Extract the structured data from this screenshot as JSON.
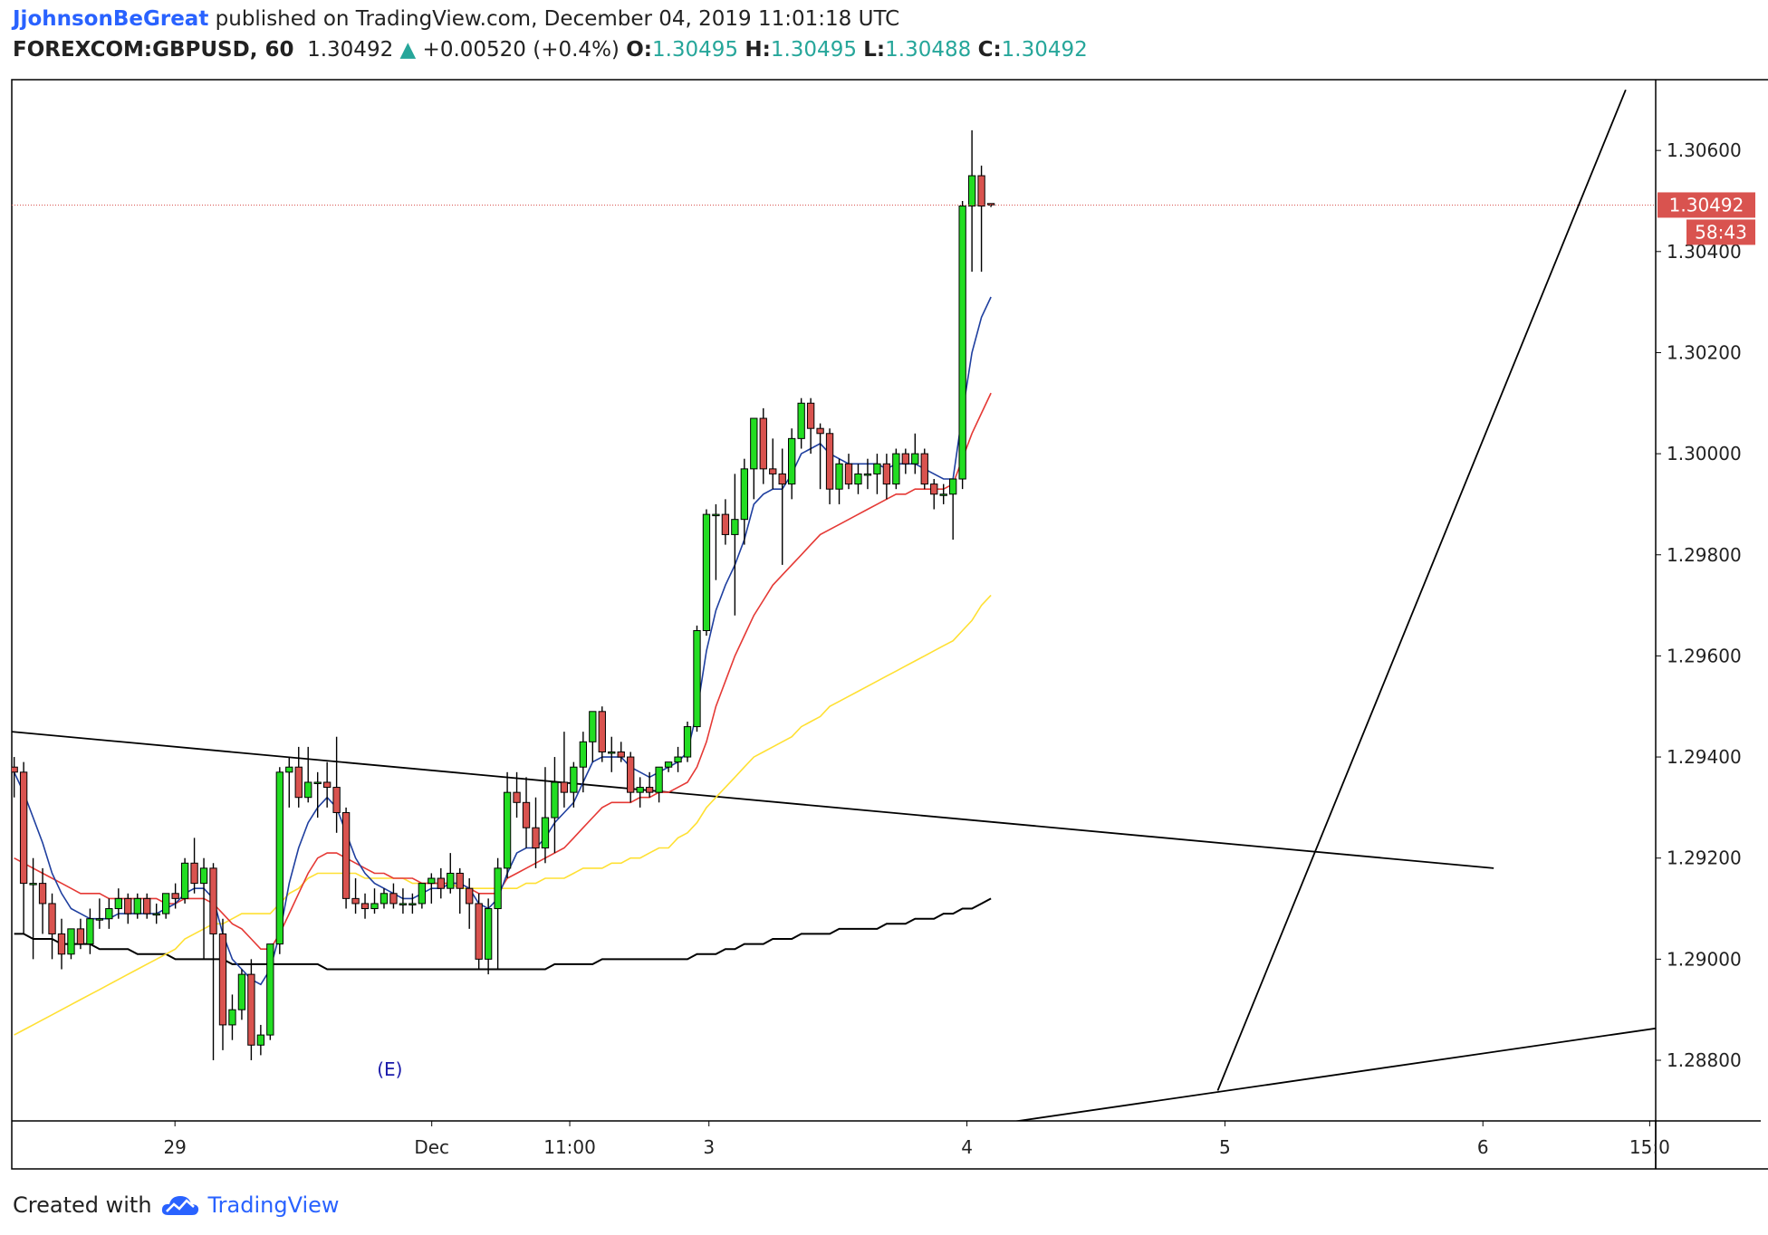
{
  "header": {
    "author": "JjohnsonBeGreat",
    "published_text": " published on TradingView.com, December 04, 2019 11:01:18 UTC",
    "symbol": "FOREXCOM:GBPUSD, 60",
    "last": "1.30492",
    "up_arrow": "▲",
    "change": "+0.00520 (+0.4%)",
    "o_label": "O:",
    "o_value": "1.30495",
    "h_label": "H:",
    "h_value": "1.30495",
    "l_label": "L:",
    "l_value": "1.30488",
    "c_label": "C:",
    "c_value": "1.30492"
  },
  "footer": {
    "created_with": "Created with",
    "brand": "TradingView"
  },
  "colors": {
    "up": "#22dd22",
    "down": "#d9534f",
    "ema_fast": "#1f3f9f",
    "ema_mid": "#e53935",
    "ema_slow": "#ffe033",
    "ma_long": "#000000",
    "price_line": "#d9534f"
  },
  "chart_data": {
    "type": "candlestick",
    "y_range": [
      1.2868,
      1.3074
    ],
    "y_ticks": [
      "1.28800",
      "1.29000",
      "1.29200",
      "1.29400",
      "1.29600",
      "1.29800",
      "1.30000",
      "1.30200",
      "1.30400",
      "1.30600"
    ],
    "x_ticks": [
      {
        "label": "29",
        "x": 48.6
      },
      {
        "label": "Dec",
        "x": 70.0
      },
      {
        "label": "11:00",
        "x": 81.5
      },
      {
        "label": "3",
        "x": 93.1
      },
      {
        "label": "4",
        "x": 114.6
      },
      {
        "label": "5",
        "x": 136.1
      },
      {
        "label": "6",
        "x": 157.6
      },
      {
        "label": "15:0",
        "x": 171.5
      }
    ],
    "x_range": [
      35,
      172
    ],
    "current_price": "1.30492",
    "countdown": "58:43",
    "event_marker": "(E)",
    "event_x": 66.5,
    "candles": [
      {
        "o": 1.2938,
        "h": 1.294,
        "l": 1.2932,
        "c": 1.2937
      },
      {
        "o": 1.2937,
        "h": 1.2939,
        "l": 1.2905,
        "c": 1.2915
      },
      {
        "o": 1.2915,
        "h": 1.292,
        "l": 1.29,
        "c": 1.2915
      },
      {
        "o": 1.2915,
        "h": 1.2918,
        "l": 1.2905,
        "c": 1.2911
      },
      {
        "o": 1.2911,
        "h": 1.2913,
        "l": 1.29,
        "c": 1.2905
      },
      {
        "o": 1.2905,
        "h": 1.2908,
        "l": 1.2898,
        "c": 1.2901
      },
      {
        "o": 1.2901,
        "h": 1.2906,
        "l": 1.29,
        "c": 1.2906
      },
      {
        "o": 1.2906,
        "h": 1.2908,
        "l": 1.2902,
        "c": 1.2903
      },
      {
        "o": 1.2903,
        "h": 1.291,
        "l": 1.2901,
        "c": 1.2908
      },
      {
        "o": 1.2908,
        "h": 1.2912,
        "l": 1.2906,
        "c": 1.2908
      },
      {
        "o": 1.2908,
        "h": 1.2912,
        "l": 1.2906,
        "c": 1.291
      },
      {
        "o": 1.291,
        "h": 1.2914,
        "l": 1.2908,
        "c": 1.2912
      },
      {
        "o": 1.2912,
        "h": 1.2913,
        "l": 1.2907,
        "c": 1.2909
      },
      {
        "o": 1.2909,
        "h": 1.2913,
        "l": 1.2908,
        "c": 1.2912
      },
      {
        "o": 1.2912,
        "h": 1.2913,
        "l": 1.2908,
        "c": 1.2909
      },
      {
        "o": 1.2909,
        "h": 1.2911,
        "l": 1.2907,
        "c": 1.2909
      },
      {
        "o": 1.2909,
        "h": 1.2913,
        "l": 1.2908,
        "c": 1.2913
      },
      {
        "o": 1.2913,
        "h": 1.2915,
        "l": 1.291,
        "c": 1.2912
      },
      {
        "o": 1.2912,
        "h": 1.292,
        "l": 1.2911,
        "c": 1.2919
      },
      {
        "o": 1.2919,
        "h": 1.2924,
        "l": 1.2913,
        "c": 1.2915
      },
      {
        "o": 1.2915,
        "h": 1.292,
        "l": 1.29,
        "c": 1.2918
      },
      {
        "o": 1.2918,
        "h": 1.2919,
        "l": 1.288,
        "c": 1.2905
      },
      {
        "o": 1.2905,
        "h": 1.2908,
        "l": 1.2882,
        "c": 1.2887
      },
      {
        "o": 1.2887,
        "h": 1.2893,
        "l": 1.2884,
        "c": 1.289
      },
      {
        "o": 1.289,
        "h": 1.2898,
        "l": 1.2888,
        "c": 1.2897
      },
      {
        "o": 1.2897,
        "h": 1.29,
        "l": 1.288,
        "c": 1.2883
      },
      {
        "o": 1.2883,
        "h": 1.2887,
        "l": 1.2881,
        "c": 1.2885
      },
      {
        "o": 1.2885,
        "h": 1.2903,
        "l": 1.2884,
        "c": 1.2903
      },
      {
        "o": 1.2903,
        "h": 1.2938,
        "l": 1.2901,
        "c": 1.2937
      },
      {
        "o": 1.2937,
        "h": 1.294,
        "l": 1.293,
        "c": 1.2938
      },
      {
        "o": 1.2938,
        "h": 1.2942,
        "l": 1.293,
        "c": 1.2932
      },
      {
        "o": 1.2932,
        "h": 1.2942,
        "l": 1.2931,
        "c": 1.2935
      },
      {
        "o": 1.2935,
        "h": 1.2937,
        "l": 1.2928,
        "c": 1.2935
      },
      {
        "o": 1.2935,
        "h": 1.2939,
        "l": 1.293,
        "c": 1.2934
      },
      {
        "o": 1.2934,
        "h": 1.2944,
        "l": 1.2925,
        "c": 1.2929
      },
      {
        "o": 1.2929,
        "h": 1.293,
        "l": 1.291,
        "c": 1.2912
      },
      {
        "o": 1.2912,
        "h": 1.2916,
        "l": 1.2909,
        "c": 1.2911
      },
      {
        "o": 1.2911,
        "h": 1.2913,
        "l": 1.2908,
        "c": 1.291
      },
      {
        "o": 1.291,
        "h": 1.2914,
        "l": 1.2909,
        "c": 1.2911
      },
      {
        "o": 1.2911,
        "h": 1.2914,
        "l": 1.291,
        "c": 1.2913
      },
      {
        "o": 1.2913,
        "h": 1.2915,
        "l": 1.291,
        "c": 1.2911
      },
      {
        "o": 1.2911,
        "h": 1.2914,
        "l": 1.2909,
        "c": 1.2911
      },
      {
        "o": 1.2911,
        "h": 1.2913,
        "l": 1.2909,
        "c": 1.2911
      },
      {
        "o": 1.2911,
        "h": 1.2915,
        "l": 1.291,
        "c": 1.2915
      },
      {
        "o": 1.2915,
        "h": 1.2917,
        "l": 1.2911,
        "c": 1.2916
      },
      {
        "o": 1.2916,
        "h": 1.2918,
        "l": 1.2912,
        "c": 1.2914
      },
      {
        "o": 1.2914,
        "h": 1.2921,
        "l": 1.2913,
        "c": 1.2917
      },
      {
        "o": 1.2917,
        "h": 1.2918,
        "l": 1.2909,
        "c": 1.2914
      },
      {
        "o": 1.2914,
        "h": 1.2916,
        "l": 1.2906,
        "c": 1.2911
      },
      {
        "o": 1.2911,
        "h": 1.2913,
        "l": 1.2898,
        "c": 1.29
      },
      {
        "o": 1.29,
        "h": 1.2912,
        "l": 1.2897,
        "c": 1.291
      },
      {
        "o": 1.291,
        "h": 1.292,
        "l": 1.2898,
        "c": 1.2918
      },
      {
        "o": 1.2918,
        "h": 1.2937,
        "l": 1.2916,
        "c": 1.2933
      },
      {
        "o": 1.2933,
        "h": 1.2937,
        "l": 1.2928,
        "c": 1.2931
      },
      {
        "o": 1.2931,
        "h": 1.2936,
        "l": 1.2922,
        "c": 1.2926
      },
      {
        "o": 1.2926,
        "h": 1.2932,
        "l": 1.2918,
        "c": 1.2922
      },
      {
        "o": 1.2922,
        "h": 1.2938,
        "l": 1.2919,
        "c": 1.2928
      },
      {
        "o": 1.2928,
        "h": 1.294,
        "l": 1.2921,
        "c": 1.2935
      },
      {
        "o": 1.2935,
        "h": 1.2945,
        "l": 1.293,
        "c": 1.2933
      },
      {
        "o": 1.2933,
        "h": 1.2939,
        "l": 1.293,
        "c": 1.2938
      },
      {
        "o": 1.2938,
        "h": 1.2945,
        "l": 1.2933,
        "c": 1.2943
      },
      {
        "o": 1.2943,
        "h": 1.2949,
        "l": 1.2939,
        "c": 1.2949
      },
      {
        "o": 1.2949,
        "h": 1.295,
        "l": 1.2939,
        "c": 1.2941
      },
      {
        "o": 1.2941,
        "h": 1.2944,
        "l": 1.2937,
        "c": 1.2941
      },
      {
        "o": 1.2941,
        "h": 1.2943,
        "l": 1.2939,
        "c": 1.294
      },
      {
        "o": 1.294,
        "h": 1.2941,
        "l": 1.2931,
        "c": 1.2933
      },
      {
        "o": 1.2933,
        "h": 1.2936,
        "l": 1.293,
        "c": 1.2934
      },
      {
        "o": 1.2934,
        "h": 1.2937,
        "l": 1.2932,
        "c": 1.2933
      },
      {
        "o": 1.2933,
        "h": 1.2938,
        "l": 1.2931,
        "c": 1.2938
      },
      {
        "o": 1.2938,
        "h": 1.2939,
        "l": 1.2937,
        "c": 1.2939
      },
      {
        "o": 1.2939,
        "h": 1.2942,
        "l": 1.2937,
        "c": 1.294
      },
      {
        "o": 1.294,
        "h": 1.2947,
        "l": 1.2939,
        "c": 1.2946
      },
      {
        "o": 1.2946,
        "h": 1.2966,
        "l": 1.2945,
        "c": 1.2965
      },
      {
        "o": 1.2965,
        "h": 1.2989,
        "l": 1.2964,
        "c": 1.2988
      },
      {
        "o": 1.2988,
        "h": 1.299,
        "l": 1.2975,
        "c": 1.2988
      },
      {
        "o": 1.2988,
        "h": 1.2991,
        "l": 1.2982,
        "c": 1.2984
      },
      {
        "o": 1.2984,
        "h": 1.2996,
        "l": 1.2968,
        "c": 1.2987
      },
      {
        "o": 1.2987,
        "h": 1.2999,
        "l": 1.2982,
        "c": 1.2997
      },
      {
        "o": 1.2997,
        "h": 1.3007,
        "l": 1.2991,
        "c": 1.3007
      },
      {
        "o": 1.3007,
        "h": 1.3009,
        "l": 1.2994,
        "c": 1.2997
      },
      {
        "o": 1.2997,
        "h": 1.3003,
        "l": 1.2993,
        "c": 1.2996
      },
      {
        "o": 1.2996,
        "h": 1.3001,
        "l": 1.2978,
        "c": 1.2994
      },
      {
        "o": 1.2994,
        "h": 1.3005,
        "l": 1.2991,
        "c": 1.3003
      },
      {
        "o": 1.3003,
        "h": 1.3011,
        "l": 1.3001,
        "c": 1.301
      },
      {
        "o": 1.301,
        "h": 1.3011,
        "l": 1.3,
        "c": 1.3005
      },
      {
        "o": 1.3005,
        "h": 1.3006,
        "l": 1.2993,
        "c": 1.3004
      },
      {
        "o": 1.3004,
        "h": 1.3005,
        "l": 1.299,
        "c": 1.2993
      },
      {
        "o": 1.2993,
        "h": 1.2999,
        "l": 1.299,
        "c": 1.2998
      },
      {
        "o": 1.2998,
        "h": 1.3,
        "l": 1.2993,
        "c": 1.2994
      },
      {
        "o": 1.2994,
        "h": 1.2998,
        "l": 1.2992,
        "c": 1.2996
      },
      {
        "o": 1.2996,
        "h": 1.2999,
        "l": 1.2993,
        "c": 1.2996
      },
      {
        "o": 1.2996,
        "h": 1.3,
        "l": 1.2992,
        "c": 1.2998
      },
      {
        "o": 1.2998,
        "h": 1.3,
        "l": 1.2991,
        "c": 1.2994
      },
      {
        "o": 1.2994,
        "h": 1.3001,
        "l": 1.2993,
        "c": 1.3
      },
      {
        "o": 1.3,
        "h": 1.3001,
        "l": 1.2996,
        "c": 1.2998
      },
      {
        "o": 1.2998,
        "h": 1.3004,
        "l": 1.2996,
        "c": 1.3
      },
      {
        "o": 1.3,
        "h": 1.3001,
        "l": 1.2993,
        "c": 1.2994
      },
      {
        "o": 1.2994,
        "h": 1.2995,
        "l": 1.2989,
        "c": 1.2992
      },
      {
        "o": 1.2992,
        "h": 1.2994,
        "l": 1.299,
        "c": 1.2992
      },
      {
        "o": 1.2992,
        "h": 1.2995,
        "l": 1.2983,
        "c": 1.2995
      },
      {
        "o": 1.2995,
        "h": 1.305,
        "l": 1.2993,
        "c": 1.3049
      },
      {
        "o": 1.3049,
        "h": 1.3064,
        "l": 1.3036,
        "c": 1.3055
      },
      {
        "o": 1.3055,
        "h": 1.3057,
        "l": 1.3036,
        "c": 1.3049
      },
      {
        "o": 1.30495,
        "h": 1.30495,
        "l": 1.30488,
        "c": 1.30492
      }
    ],
    "ema_fast": [
      1.2937,
      1.2933,
      1.2928,
      1.2923,
      1.2917,
      1.2913,
      1.291,
      1.2909,
      1.2908,
      1.2908,
      1.2908,
      1.2909,
      1.2909,
      1.2909,
      1.2909,
      1.2909,
      1.291,
      1.2911,
      1.2913,
      1.2914,
      1.2914,
      1.2912,
      1.2905,
      1.29,
      1.2898,
      1.2896,
      1.2895,
      1.2898,
      1.2905,
      1.2915,
      1.2922,
      1.2927,
      1.293,
      1.2932,
      1.293,
      1.2925,
      1.292,
      1.2917,
      1.2915,
      1.2914,
      1.2913,
      1.2912,
      1.2912,
      1.2913,
      1.2914,
      1.2914,
      1.2915,
      1.2915,
      1.2914,
      1.2911,
      1.291,
      1.2912,
      1.2917,
      1.2921,
      1.2922,
      1.2922,
      1.2924,
      1.2927,
      1.2929,
      1.2931,
      1.2935,
      1.2939,
      1.294,
      1.294,
      1.294,
      1.2938,
      1.2937,
      1.2936,
      1.2937,
      1.2938,
      1.2939,
      1.2941,
      1.2949,
      1.2961,
      1.2969,
      1.2974,
      1.2978,
      1.2983,
      1.299,
      1.2992,
      1.2993,
      1.2993,
      1.2996,
      1.3,
      1.3001,
      1.3002,
      1.3,
      1.2999,
      1.2998,
      1.2998,
      1.2998,
      1.2998,
      1.2997,
      1.2998,
      1.2998,
      1.2998,
      1.2997,
      1.2996,
      1.2995,
      1.2995,
      1.3008,
      1.302,
      1.3027,
      1.3031
    ],
    "ema_mid": [
      1.292,
      1.2919,
      1.2918,
      1.2917,
      1.2916,
      1.2915,
      1.2914,
      1.2913,
      1.2913,
      1.2913,
      1.2912,
      1.2912,
      1.2912,
      1.2912,
      1.2912,
      1.2912,
      1.2911,
      1.2911,
      1.2912,
      1.2912,
      1.2912,
      1.2911,
      1.2909,
      1.2907,
      1.2906,
      1.2904,
      1.2902,
      1.2902,
      1.2905,
      1.2909,
      1.2913,
      1.2917,
      1.292,
      1.2921,
      1.2921,
      1.292,
      1.2919,
      1.2918,
      1.2917,
      1.2917,
      1.2916,
      1.2916,
      1.2916,
      1.2915,
      1.2915,
      1.2915,
      1.2915,
      1.2915,
      1.2914,
      1.2913,
      1.2913,
      1.2913,
      1.2916,
      1.2917,
      1.2918,
      1.2919,
      1.292,
      1.2921,
      1.2922,
      1.2924,
      1.2926,
      1.2928,
      1.293,
      1.2931,
      1.2931,
      1.2931,
      1.2932,
      1.2932,
      1.2933,
      1.2933,
      1.2934,
      1.2935,
      1.2938,
      1.2943,
      1.295,
      1.2955,
      1.296,
      1.2964,
      1.2968,
      1.2971,
      1.2974,
      1.2976,
      1.2978,
      1.298,
      1.2982,
      1.2984,
      1.2985,
      1.2986,
      1.2987,
      1.2988,
      1.2989,
      1.299,
      1.2991,
      1.2992,
      1.2992,
      1.2993,
      1.2993,
      1.2993,
      1.2993,
      1.2994,
      1.2999,
      1.3004,
      1.3008,
      1.3012
    ],
    "ema_slow": [
      1.2885,
      1.2886,
      1.2887,
      1.2888,
      1.2889,
      1.289,
      1.2891,
      1.2892,
      1.2893,
      1.2894,
      1.2895,
      1.2896,
      1.2897,
      1.2898,
      1.2899,
      1.29,
      1.2901,
      1.2902,
      1.2904,
      1.2905,
      1.2906,
      1.2907,
      1.2907,
      1.2908,
      1.2909,
      1.2909,
      1.2909,
      1.2909,
      1.2911,
      1.2913,
      1.2914,
      1.2916,
      1.2917,
      1.2917,
      1.2917,
      1.2917,
      1.2917,
      1.2916,
      1.2916,
      1.2916,
      1.2916,
      1.2916,
      1.2915,
      1.2915,
      1.2915,
      1.2915,
      1.2915,
      1.2914,
      1.2914,
      1.2914,
      1.2914,
      1.2914,
      1.2914,
      1.2914,
      1.2915,
      1.2915,
      1.2916,
      1.2916,
      1.2916,
      1.2917,
      1.2918,
      1.2918,
      1.2918,
      1.2919,
      1.2919,
      1.292,
      1.292,
      1.2921,
      1.2922,
      1.2922,
      1.2924,
      1.2925,
      1.2927,
      1.293,
      1.2932,
      1.2934,
      1.2936,
      1.2938,
      1.294,
      1.2941,
      1.2942,
      1.2943,
      1.2944,
      1.2946,
      1.2947,
      1.2948,
      1.295,
      1.2951,
      1.2952,
      1.2953,
      1.2954,
      1.2955,
      1.2956,
      1.2957,
      1.2958,
      1.2959,
      1.296,
      1.2961,
      1.2962,
      1.2963,
      1.2965,
      1.2967,
      1.297,
      1.2972
    ],
    "ma_long": [
      1.2905,
      1.2905,
      1.2904,
      1.2904,
      1.2904,
      1.2903,
      1.2903,
      1.2903,
      1.2903,
      1.2902,
      1.2902,
      1.2902,
      1.2902,
      1.2901,
      1.2901,
      1.2901,
      1.2901,
      1.29,
      1.29,
      1.29,
      1.29,
      1.29,
      1.29,
      1.2899,
      1.2899,
      1.2899,
      1.2899,
      1.2899,
      1.2899,
      1.2899,
      1.2899,
      1.2899,
      1.2899,
      1.2898,
      1.2898,
      1.2898,
      1.2898,
      1.2898,
      1.2898,
      1.2898,
      1.2898,
      1.2898,
      1.2898,
      1.2898,
      1.2898,
      1.2898,
      1.2898,
      1.2898,
      1.2898,
      1.2898,
      1.2898,
      1.2898,
      1.2898,
      1.2898,
      1.2898,
      1.2898,
      1.2898,
      1.2899,
      1.2899,
      1.2899,
      1.2899,
      1.2899,
      1.29,
      1.29,
      1.29,
      1.29,
      1.29,
      1.29,
      1.29,
      1.29,
      1.29,
      1.29,
      1.2901,
      1.2901,
      1.2901,
      1.2902,
      1.2902,
      1.2903,
      1.2903,
      1.2903,
      1.2904,
      1.2904,
      1.2904,
      1.2905,
      1.2905,
      1.2905,
      1.2905,
      1.2906,
      1.2906,
      1.2906,
      1.2906,
      1.2906,
      1.2907,
      1.2907,
      1.2907,
      1.2908,
      1.2908,
      1.2908,
      1.2909,
      1.2909,
      1.291,
      1.291,
      1.2911,
      1.2912
    ],
    "trend_lines": [
      {
        "x1": 35,
        "y1": 1.2945,
        "x2": 158.5,
        "y2": 1.2918
      },
      {
        "x1": 116,
        "y1": 1.2867,
        "x2": 174,
        "y2": 1.2887
      },
      {
        "x1": 135.5,
        "y1": 1.2874,
        "x2": 169.5,
        "y2": 1.3072
      }
    ]
  }
}
